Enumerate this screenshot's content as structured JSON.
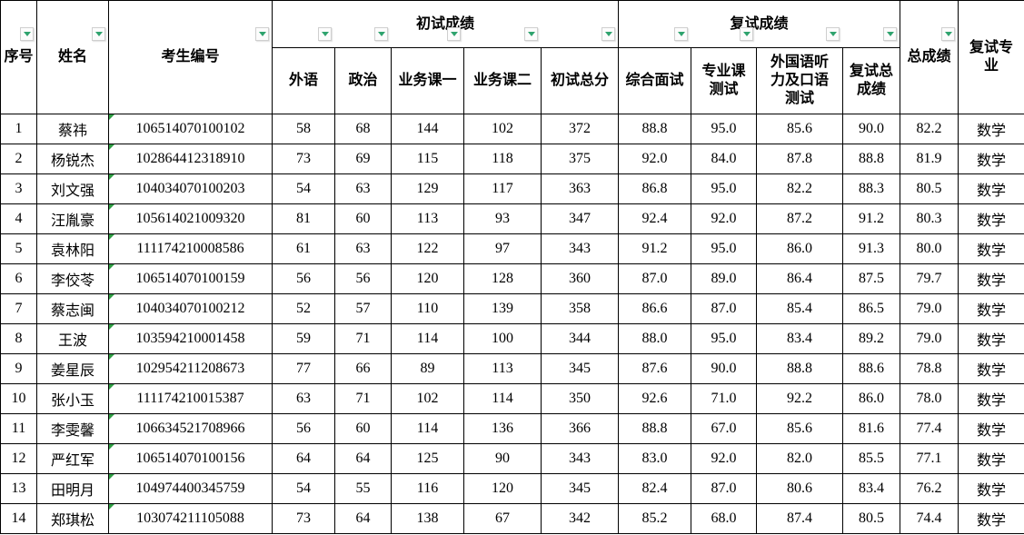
{
  "header": {
    "col_no": "序号",
    "col_name": "姓名",
    "col_id": "考生编号",
    "group_preliminary": "初试成绩",
    "group_retest": "复试成绩",
    "col_foreign": "外语",
    "col_politics": "政治",
    "col_course1": "业务课一",
    "col_course2": "业务课二",
    "col_prelim_total": "初试总分",
    "col_interview": "综合面试",
    "col_major_test": "专业课\n测试",
    "col_listening": "外国语听\n力及口语\n测试",
    "col_retest_total": "复试总\n成绩",
    "col_overall": "总成绩",
    "col_major": "复试专\n业"
  },
  "rows": [
    {
      "no": "1",
      "name": "蔡祎",
      "id": "106514070100102",
      "foreign": "58",
      "politics": "68",
      "course1": "144",
      "course2": "102",
      "prelim_total": "372",
      "interview": "88.8",
      "major_test": "95.0",
      "listening": "85.6",
      "retest_total": "90.0",
      "overall": "82.2",
      "major": "数学"
    },
    {
      "no": "2",
      "name": "杨锐杰",
      "id": "102864412318910",
      "foreign": "73",
      "politics": "69",
      "course1": "115",
      "course2": "118",
      "prelim_total": "375",
      "interview": "92.0",
      "major_test": "84.0",
      "listening": "87.8",
      "retest_total": "88.8",
      "overall": "81.9",
      "major": "数学"
    },
    {
      "no": "3",
      "name": "刘文强",
      "id": "104034070100203",
      "foreign": "54",
      "politics": "63",
      "course1": "129",
      "course2": "117",
      "prelim_total": "363",
      "interview": "86.8",
      "major_test": "95.0",
      "listening": "82.2",
      "retest_total": "88.3",
      "overall": "80.5",
      "major": "数学"
    },
    {
      "no": "4",
      "name": "汪胤豪",
      "id": "105614021009320",
      "foreign": "81",
      "politics": "60",
      "course1": "113",
      "course2": "93",
      "prelim_total": "347",
      "interview": "92.4",
      "major_test": "92.0",
      "listening": "87.2",
      "retest_total": "91.2",
      "overall": "80.3",
      "major": "数学"
    },
    {
      "no": "5",
      "name": "袁林阳",
      "id": "111174210008586",
      "foreign": "61",
      "politics": "63",
      "course1": "122",
      "course2": "97",
      "prelim_total": "343",
      "interview": "91.2",
      "major_test": "95.0",
      "listening": "86.0",
      "retest_total": "91.3",
      "overall": "80.0",
      "major": "数学"
    },
    {
      "no": "6",
      "name": "李佼苓",
      "id": "106514070100159",
      "foreign": "56",
      "politics": "56",
      "course1": "120",
      "course2": "128",
      "prelim_total": "360",
      "interview": "87.0",
      "major_test": "89.0",
      "listening": "86.4",
      "retest_total": "87.5",
      "overall": "79.7",
      "major": "数学"
    },
    {
      "no": "7",
      "name": "蔡志闽",
      "id": "104034070100212",
      "foreign": "52",
      "politics": "57",
      "course1": "110",
      "course2": "139",
      "prelim_total": "358",
      "interview": "86.6",
      "major_test": "87.0",
      "listening": "85.4",
      "retest_total": "86.5",
      "overall": "79.0",
      "major": "数学"
    },
    {
      "no": "8",
      "name": "王波",
      "id": "103594210001458",
      "foreign": "59",
      "politics": "71",
      "course1": "114",
      "course2": "100",
      "prelim_total": "344",
      "interview": "88.0",
      "major_test": "95.0",
      "listening": "83.4",
      "retest_total": "89.2",
      "overall": "79.0",
      "major": "数学"
    },
    {
      "no": "9",
      "name": "姜星辰",
      "id": "102954211208673",
      "foreign": "77",
      "politics": "66",
      "course1": "89",
      "course2": "113",
      "prelim_total": "345",
      "interview": "87.6",
      "major_test": "90.0",
      "listening": "88.8",
      "retest_total": "88.6",
      "overall": "78.8",
      "major": "数学"
    },
    {
      "no": "10",
      "name": "张小玉",
      "id": "111174210015387",
      "foreign": "63",
      "politics": "71",
      "course1": "102",
      "course2": "114",
      "prelim_total": "350",
      "interview": "92.6",
      "major_test": "71.0",
      "listening": "92.2",
      "retest_total": "86.0",
      "overall": "78.0",
      "major": "数学"
    },
    {
      "no": "11",
      "name": "李雯馨",
      "id": "106634521708966",
      "foreign": "56",
      "politics": "60",
      "course1": "114",
      "course2": "136",
      "prelim_total": "366",
      "interview": "88.8",
      "major_test": "67.0",
      "listening": "85.6",
      "retest_total": "81.6",
      "overall": "77.4",
      "major": "数学"
    },
    {
      "no": "12",
      "name": "严红军",
      "id": "106514070100156",
      "foreign": "64",
      "politics": "64",
      "course1": "125",
      "course2": "90",
      "prelim_total": "343",
      "interview": "83.0",
      "major_test": "92.0",
      "listening": "82.0",
      "retest_total": "85.5",
      "overall": "77.1",
      "major": "数学"
    },
    {
      "no": "13",
      "name": "田明月",
      "id": "104974400345759",
      "foreign": "54",
      "politics": "55",
      "course1": "116",
      "course2": "120",
      "prelim_total": "345",
      "interview": "82.4",
      "major_test": "87.0",
      "listening": "80.6",
      "retest_total": "83.4",
      "overall": "76.2",
      "major": "数学"
    },
    {
      "no": "14",
      "name": "郑琪松",
      "id": "103074211105088",
      "foreign": "73",
      "politics": "64",
      "course1": "138",
      "course2": "67",
      "prelim_total": "342",
      "interview": "85.2",
      "major_test": "68.0",
      "listening": "87.4",
      "retest_total": "80.5",
      "overall": "74.4",
      "major": "数学"
    }
  ],
  "icons": {
    "filter_dropdown": "filter-dropdown-arrow",
    "corner_mark": "text-as-number-indicator"
  },
  "colors": {
    "filter_arrow": "#2fa36e",
    "corner_indicator": "#2f9e44",
    "grid_line": "#000000",
    "background": "#ffffff"
  }
}
